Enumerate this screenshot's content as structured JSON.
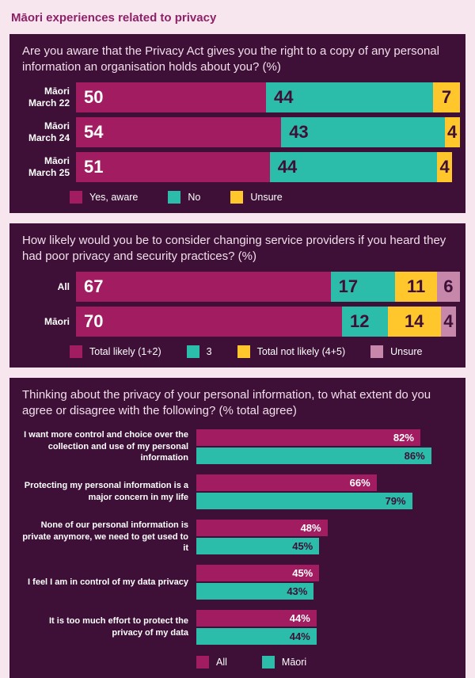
{
  "page": {
    "title": "Māori experiences related to privacy"
  },
  "colors": {
    "page_bg": "#F7E6EE",
    "panel_bg": "#3E0F37",
    "magenta": "#A11C60",
    "teal": "#2BBDA9",
    "yellow": "#FFC72C",
    "mauve": "#C687AB",
    "title_text": "#8F2168",
    "light_text": "#F1DFEA",
    "dark_text": "#3E0F37"
  },
  "chart_data": [
    {
      "type": "bar",
      "variant": "horizontal-stacked",
      "question": "Are you aware that the Privacy Act gives you the right to a copy of any personal information an organisation holds about you? (%)",
      "legend": [
        "Yes, aware",
        "No",
        "Unsure"
      ],
      "series_colors": [
        "#A11C60",
        "#2BBDA9",
        "#FFC72C"
      ],
      "rows": [
        {
          "label_line1": "Māori",
          "label_line2": "March 22",
          "values": [
            50,
            44,
            7
          ]
        },
        {
          "label_line1": "Māori",
          "label_line2": "March 24",
          "values": [
            54,
            43,
            4
          ]
        },
        {
          "label_line1": "Māori",
          "label_line2": "March 25",
          "values": [
            51,
            44,
            4
          ]
        }
      ]
    },
    {
      "type": "bar",
      "variant": "horizontal-stacked",
      "question": "How likely would you be to consider changing service providers if you heard they had poor privacy and security practices? (%)",
      "legend": [
        "Total likely (1+2)",
        "3",
        "Total not likely (4+5)",
        "Unsure"
      ],
      "series_colors": [
        "#A11C60",
        "#2BBDA9",
        "#FFC72C",
        "#C687AB"
      ],
      "rows": [
        {
          "label": "All",
          "values": [
            67,
            17,
            11,
            6
          ]
        },
        {
          "label": "Māori",
          "values": [
            70,
            12,
            14,
            4
          ]
        }
      ]
    },
    {
      "type": "bar",
      "variant": "horizontal-grouped",
      "question": "Thinking about the privacy of your personal information, to what extent do you agree or disagree with the following? (% total agree)",
      "legend": [
        "All",
        "Māori"
      ],
      "series_colors": [
        "#A11C60",
        "#2BBDA9"
      ],
      "items": [
        {
          "label": "I want more control and choice over the collection and use of my personal information",
          "all": 82,
          "maori": 86,
          "all_label": "82%",
          "maori_label": "86%"
        },
        {
          "label": "Protecting my personal information is a major concern in my life",
          "all": 66,
          "maori": 79,
          "all_label": "66%",
          "maori_label": "79%"
        },
        {
          "label": "None of our personal information is private anymore, we need to get used to it",
          "all": 48,
          "maori": 45,
          "all_label": "48%",
          "maori_label": "45%"
        },
        {
          "label": "I feel I am in control of my data privacy",
          "all": 45,
          "maori": 43,
          "all_label": "45%",
          "maori_label": "43%"
        },
        {
          "label": "It is too much effort to protect the privacy of my data",
          "all": 44,
          "maori": 44,
          "all_label": "44%",
          "maori_label": "44%"
        }
      ]
    }
  ]
}
